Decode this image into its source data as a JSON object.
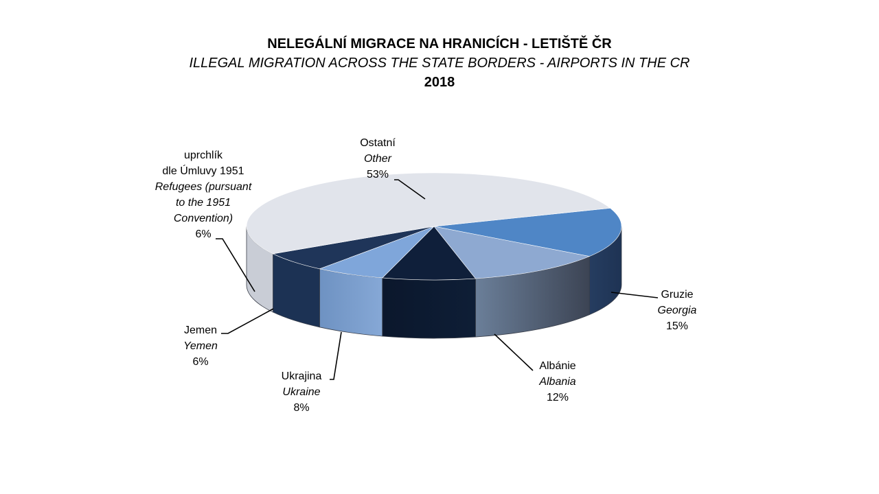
{
  "chart_data": {
    "type": "pie",
    "title": "NELEGÁLNÍ MIGRACE NA HRANICÍCH - LETIŠTĚ ČR",
    "subtitle": "ILLEGAL MIGRATION ACROSS THE STATE BORDERS - AIRPORTS IN THE CR",
    "year": "2018",
    "slices": [
      {
        "label_cs": "Gruzie",
        "label_en": "Georgia",
        "percent_label": "15%",
        "value": 15,
        "color": "#4F86C6"
      },
      {
        "label_cs": "Albánie",
        "label_en": "Albania",
        "percent_label": "12%",
        "value": 12,
        "color": "#8EA9D1"
      },
      {
        "label_cs": "Ukrajina",
        "label_en": "Ukraine",
        "percent_label": "8%",
        "value": 8,
        "color": "#0F1F3A"
      },
      {
        "label_cs": "Jemen",
        "label_en": "Yemen",
        "percent_label": "6%",
        "value": 6,
        "color": "#7FA6DA"
      },
      {
        "label_cs": "uprchlík",
        "label_cs2": "dle Úmluvy 1951",
        "label_en": "Refugees (pursuant",
        "label_en2": "to the 1951",
        "label_en3": "Convention)",
        "percent_label": "6%",
        "value": 6,
        "color": "#1F3559"
      },
      {
        "label_cs": "Ostatní",
        "label_en": "Other",
        "percent_label": "53%",
        "value": 53,
        "color": "#E1E4EB"
      }
    ]
  }
}
